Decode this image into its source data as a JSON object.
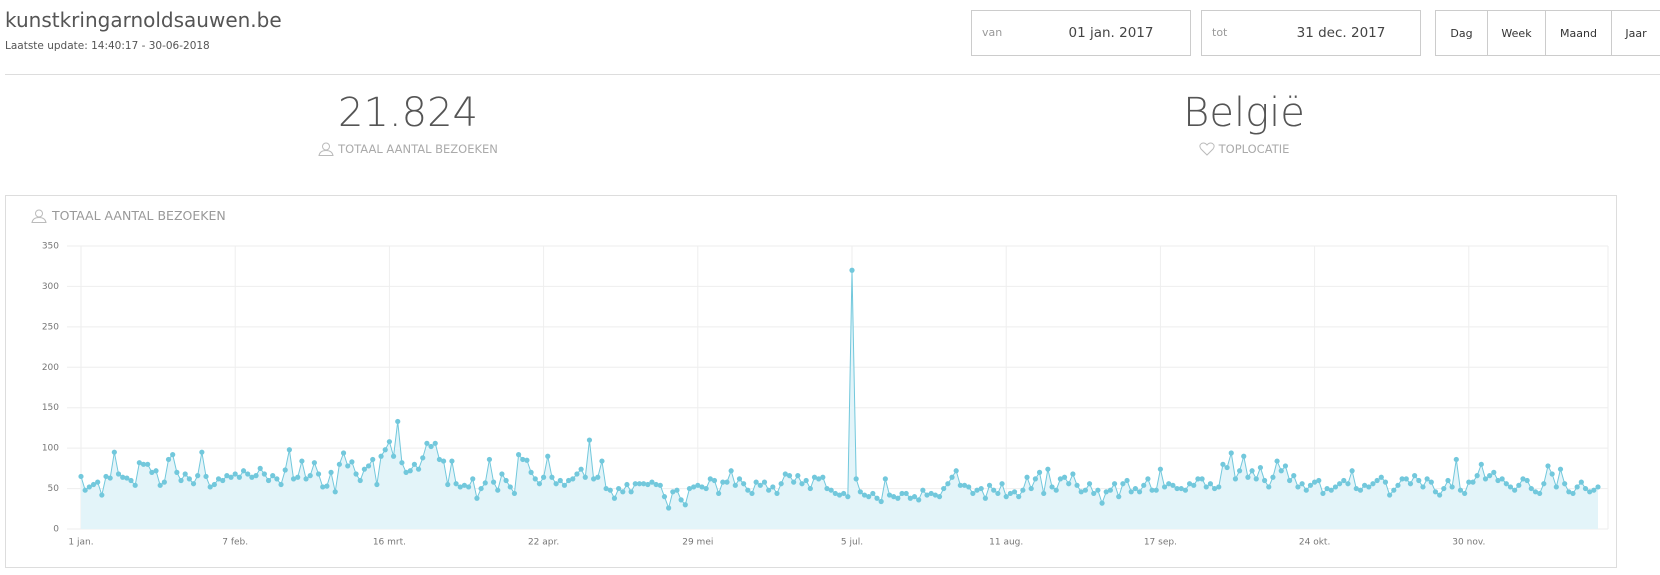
{
  "header": {
    "site": "kunstkringarnoldsauwen.be",
    "update": "Laatste update: 14:40:17 - 30-06-2018"
  },
  "range": {
    "from_label": "van",
    "from": "01 jan. 2017",
    "to_label": "tot",
    "to": "31 dec. 2017"
  },
  "periods": [
    "Dag",
    "Week",
    "Maand",
    "Jaar"
  ],
  "stats": [
    {
      "value": "21.824",
      "label": "TOTAAL AANTAL BEZOEKEN"
    },
    {
      "value": "België",
      "label": "TOPLOCATIE"
    }
  ],
  "chart_data": {
    "type": "line",
    "title": "TOTAAL AANTAL BEZOEKEN",
    "color": "#72c8dc",
    "area_color": "#e3f4f9",
    "grid": true,
    "ylim": [
      0,
      350
    ],
    "yticks": [
      0,
      50,
      100,
      150,
      200,
      250,
      300,
      350
    ],
    "categories": [
      "1 jan.",
      null,
      null,
      null,
      null,
      null,
      null,
      null,
      null,
      null,
      null,
      null,
      null,
      null,
      null,
      null,
      null,
      null,
      null,
      null,
      null,
      null,
      null,
      null,
      null,
      null,
      null,
      null,
      null,
      null,
      null,
      null,
      null,
      null,
      null,
      null,
      null,
      "7 feb.",
      null,
      null,
      null,
      null,
      null,
      null,
      null,
      null,
      null,
      null,
      null,
      null,
      null,
      null,
      null,
      null,
      null,
      null,
      null,
      null,
      null,
      null,
      null,
      null,
      null,
      null,
      null,
      null,
      null,
      null,
      null,
      null,
      null,
      null,
      null,
      null,
      "16 mrt.",
      null,
      null,
      null,
      null,
      null,
      null,
      null,
      null,
      null,
      null,
      null,
      null,
      null,
      null,
      null,
      null,
      null,
      null,
      null,
      null,
      null,
      null,
      null,
      null,
      null,
      null,
      null,
      null,
      null,
      null,
      null,
      null,
      null,
      null,
      null,
      null,
      "22 apr.",
      null,
      null,
      null,
      null,
      null,
      null,
      null,
      null,
      null,
      null,
      null,
      null,
      null,
      null,
      null,
      null,
      null,
      null,
      null,
      null,
      null,
      null,
      null,
      null,
      null,
      null,
      null,
      null,
      null,
      null,
      null,
      null,
      null,
      null,
      null,
      null,
      "29 mei",
      null,
      null,
      null,
      null,
      null,
      null,
      null,
      null,
      null,
      null,
      null,
      null,
      null,
      null,
      null,
      null,
      null,
      null,
      null,
      null,
      null,
      null,
      null,
      null,
      null,
      null,
      null,
      null,
      null,
      null,
      null,
      null,
      null,
      null,
      null,
      null,
      "5 jul.",
      null,
      null,
      null,
      null,
      null,
      null,
      null,
      null,
      null,
      null,
      null,
      null,
      null,
      null,
      null,
      null,
      null,
      null,
      null,
      null,
      null,
      null,
      null,
      null,
      null,
      null,
      null,
      null,
      null,
      null,
      null,
      null,
      null,
      null,
      null,
      null,
      "11 aug.",
      null,
      null,
      null,
      null,
      null,
      null,
      null,
      null,
      null,
      null,
      null,
      null,
      null,
      null,
      null,
      null,
      null,
      null,
      null,
      null,
      null,
      null,
      null,
      null,
      null,
      null,
      null,
      null,
      null,
      null,
      null,
      null,
      null,
      null,
      null,
      null,
      "17 sep.",
      null,
      null,
      null,
      null,
      null,
      null,
      null,
      null,
      null,
      null,
      null,
      null,
      null,
      null,
      null,
      null,
      null,
      null,
      null,
      null,
      null,
      null,
      null,
      null,
      null,
      null,
      null,
      null,
      null,
      null,
      null,
      null,
      null,
      null,
      null,
      null,
      "24 okt.",
      null,
      null,
      null,
      null,
      null,
      null,
      null,
      null,
      null,
      null,
      null,
      null,
      null,
      null,
      null,
      null,
      null,
      null,
      null,
      null,
      null,
      null,
      null,
      null,
      null,
      null,
      null,
      null,
      null,
      null,
      null,
      null,
      null,
      null,
      null,
      null,
      "30 nov.",
      null,
      null,
      null,
      null,
      null,
      null,
      null,
      null,
      null,
      null,
      null,
      null,
      null,
      null,
      null,
      null,
      null,
      null,
      null,
      null,
      null,
      null,
      null,
      null,
      null,
      null,
      null,
      null,
      null,
      null,
      null
    ],
    "values": [
      65,
      48,
      52,
      55,
      58,
      42,
      65,
      63,
      95,
      68,
      64,
      63,
      60,
      54,
      82,
      80,
      80,
      70,
      72,
      54,
      58,
      86,
      92,
      70,
      60,
      68,
      62,
      56,
      66,
      95,
      65,
      52,
      55,
      62,
      60,
      66,
      64,
      68,
      64,
      72,
      68,
      64,
      66,
      75,
      68,
      60,
      66,
      62,
      55,
      73,
      98,
      62,
      64,
      84,
      62,
      66,
      82,
      68,
      52,
      53,
      70,
      46,
      80,
      94,
      78,
      83,
      68,
      60,
      74,
      78,
      86,
      55,
      90,
      98,
      108,
      90,
      133,
      82,
      70,
      72,
      80,
      74,
      88,
      106,
      102,
      106,
      86,
      84,
      55,
      84,
      56,
      52,
      54,
      52,
      62,
      38,
      50,
      57,
      86,
      58,
      48,
      68,
      60,
      52,
      44,
      92,
      86,
      85,
      70,
      62,
      56,
      64,
      90,
      64,
      56,
      60,
      54,
      60,
      62,
      68,
      74,
      64,
      110,
      62,
      64,
      84,
      50,
      48,
      38,
      50,
      46,
      55,
      46,
      56,
      56,
      56,
      55,
      58,
      55,
      54,
      40,
      26,
      46,
      48,
      36,
      30,
      50,
      52,
      54,
      52,
      50,
      62,
      60,
      44,
      58,
      58,
      72,
      54,
      62,
      56,
      48,
      44,
      58,
      54,
      58,
      48,
      52,
      44,
      56,
      68,
      66,
      58,
      66,
      56,
      60,
      50,
      64,
      62,
      64,
      50,
      48,
      44,
      42,
      44,
      40,
      320,
      62,
      46,
      42,
      40,
      44,
      38,
      34,
      62,
      42,
      40,
      38,
      44,
      44,
      38,
      40,
      36,
      48,
      42,
      44,
      42,
      40,
      50,
      56,
      64,
      72,
      54,
      54,
      52,
      44,
      48,
      50,
      38,
      54,
      48,
      44,
      56,
      40,
      44,
      46,
      40,
      48,
      64,
      50,
      62,
      70,
      44,
      74,
      52,
      48,
      62,
      64,
      56,
      68,
      54,
      46,
      48,
      56,
      44,
      48,
      32,
      46,
      48,
      56,
      40,
      56,
      60,
      46,
      50,
      46,
      54,
      62,
      48,
      48,
      74,
      52,
      56,
      54,
      50,
      50,
      48,
      56,
      54,
      62,
      62,
      52,
      56,
      50,
      52,
      80,
      76,
      94,
      62,
      72,
      90,
      64,
      72,
      62,
      76,
      60,
      52,
      64,
      84,
      72,
      78,
      60,
      66,
      52,
      56,
      48,
      54,
      58,
      60,
      44,
      50,
      48,
      52,
      56,
      60,
      56,
      72,
      50,
      48,
      54,
      52,
      56,
      60,
      64,
      58,
      42,
      48,
      54,
      62,
      62,
      56,
      66,
      60,
      52,
      62,
      58,
      46,
      42,
      50,
      60,
      52,
      86,
      48,
      44,
      58,
      58,
      66,
      80,
      62,
      66,
      70,
      60,
      62,
      56,
      52,
      48,
      54,
      62,
      60,
      50,
      46,
      44,
      56,
      78,
      68,
      52,
      74,
      56,
      46,
      44,
      52,
      58,
      50,
      46,
      48,
      52
    ]
  }
}
